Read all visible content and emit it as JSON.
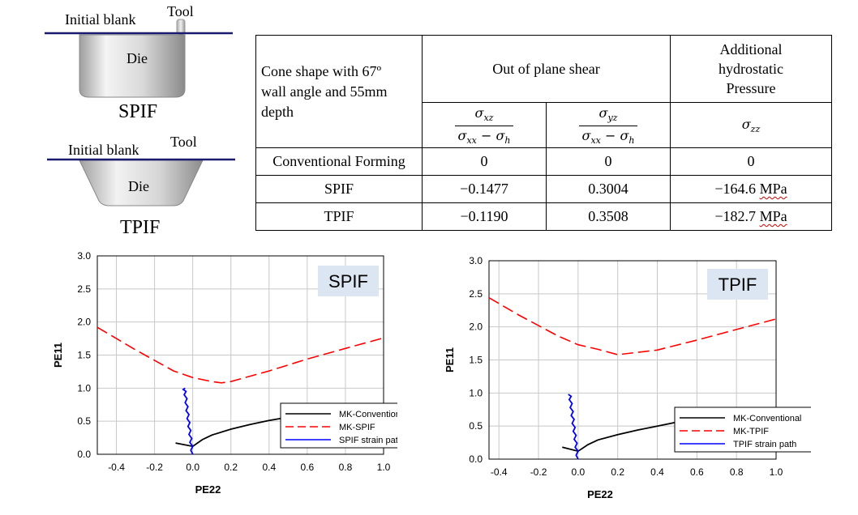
{
  "schematics": [
    {
      "blank_label": "Initial blank",
      "tool_label": "Tool",
      "die_label": "Die",
      "process": "SPIF"
    },
    {
      "blank_label": "Initial blank",
      "tool_label": "Tool",
      "die_label": "Die",
      "process": "TPIF"
    }
  ],
  "table": {
    "corner_text": [
      "Cone shape with 67º",
      "wall angle and 55mm",
      "depth"
    ],
    "group_header": "Out of plane shear",
    "pressure_header": [
      "Additional",
      "hydrostatic",
      "Pressure"
    ],
    "formula1": {
      "num_var": "σ",
      "num_sub": "xz",
      "den_a": "σ",
      "den_a_sub": "xx",
      "den_op": " − ",
      "den_b": "σ",
      "den_b_sub": "h"
    },
    "formula2": {
      "num_var": "σ",
      "num_sub": "yz",
      "den_a": "σ",
      "den_a_sub": "xx",
      "den_op": " − ",
      "den_b": "σ",
      "den_b_sub": "h"
    },
    "formula3": {
      "var": "σ",
      "sub": "zz"
    },
    "rows": [
      {
        "label": "Conventional Forming",
        "c1": "0",
        "c2": "0",
        "c3": "0",
        "c3_unit": ""
      },
      {
        "label": "SPIF",
        "c1": "−0.1477",
        "c2": "0.3004",
        "c3": "−164.6 ",
        "c3_unit": "MPa"
      },
      {
        "label": "TPIF",
        "c1": "−0.1190",
        "c2": "0.3508",
        "c3": "−182.7 ",
        "c3_unit": "MPa"
      }
    ]
  },
  "chart_data": [
    {
      "type": "line",
      "title": "SPIF",
      "xlabel": "PE22",
      "ylabel": "PE11",
      "xlim": [
        -0.5,
        1.0
      ],
      "ylim": [
        0.0,
        3.0
      ],
      "x_ticks": [
        "-0.4",
        "-0.2",
        "0.0",
        "0.2",
        "0.4",
        "0.6",
        "0.8",
        "1.0"
      ],
      "y_ticks": [
        "0.0",
        "0.5",
        "1.0",
        "1.5",
        "2.0",
        "2.5",
        "3.0"
      ],
      "grid": true,
      "legend_position": "bottom-right",
      "series": [
        {
          "name": "MK-Conventional",
          "color": "#000000",
          "style": "solid",
          "x": [
            -0.09,
            0.0,
            0.0,
            0.05,
            0.1,
            0.2,
            0.3,
            0.4,
            0.5
          ],
          "y": [
            0.17,
            0.12,
            0.12,
            0.22,
            0.29,
            0.38,
            0.45,
            0.51,
            0.56
          ]
        },
        {
          "name": "MK-SPIF",
          "color": "#ff0000",
          "style": "dashed",
          "x": [
            -0.5,
            -0.3,
            -0.1,
            0.0,
            0.1,
            0.15,
            0.2,
            0.4,
            0.6,
            0.8,
            1.0
          ],
          "y": [
            1.92,
            1.58,
            1.26,
            1.16,
            1.1,
            1.08,
            1.1,
            1.26,
            1.44,
            1.6,
            1.76
          ]
        },
        {
          "name": "SPIF strain path",
          "color": "#0000ff",
          "style": "solid",
          "x": [
            0.0,
            -0.01,
            0.0,
            -0.015,
            -0.005,
            -0.02,
            -0.01,
            -0.025,
            -0.015,
            -0.03,
            -0.02,
            -0.035,
            -0.025,
            -0.04,
            -0.03,
            -0.045,
            -0.035,
            -0.05,
            -0.04
          ],
          "y": [
            0.0,
            0.06,
            0.12,
            0.18,
            0.24,
            0.3,
            0.36,
            0.42,
            0.48,
            0.54,
            0.6,
            0.66,
            0.72,
            0.78,
            0.84,
            0.9,
            0.95,
            0.98,
            1.0
          ]
        }
      ]
    },
    {
      "type": "line",
      "title": "TPIF",
      "xlabel": "PE22",
      "ylabel": "PE11",
      "xlim": [
        -0.45,
        1.0
      ],
      "ylim": [
        0.0,
        3.0
      ],
      "x_ticks": [
        "-0.4",
        "-0.2",
        "0.0",
        "0.2",
        "0.4",
        "0.6",
        "0.8",
        "1.0"
      ],
      "y_ticks": [
        "0.0",
        "0.5",
        "1.0",
        "1.5",
        "2.0",
        "2.5",
        "3.0"
      ],
      "grid": true,
      "legend_position": "bottom-right",
      "series": [
        {
          "name": "MK-Conventional",
          "color": "#000000",
          "style": "solid",
          "x": [
            -0.08,
            0.0,
            0.0,
            0.05,
            0.1,
            0.2,
            0.3,
            0.4,
            0.5
          ],
          "y": [
            0.18,
            0.12,
            0.12,
            0.22,
            0.29,
            0.37,
            0.44,
            0.5,
            0.56
          ]
        },
        {
          "name": "MK-TPIF",
          "color": "#ff0000",
          "style": "dashed",
          "x": [
            -0.45,
            -0.3,
            -0.1,
            0.0,
            0.1,
            0.2,
            0.4,
            0.6,
            0.8,
            1.0
          ],
          "y": [
            2.44,
            2.18,
            1.86,
            1.73,
            1.66,
            1.58,
            1.65,
            1.8,
            1.96,
            2.12
          ]
        },
        {
          "name": "TPIF strain path",
          "color": "#0000ff",
          "style": "solid",
          "x": [
            0.0,
            -0.01,
            0.0,
            -0.015,
            -0.005,
            -0.02,
            -0.01,
            -0.025,
            -0.015,
            -0.03,
            -0.02,
            -0.035,
            -0.025,
            -0.04,
            -0.03,
            -0.045,
            -0.035,
            -0.05
          ],
          "y": [
            0.0,
            0.06,
            0.12,
            0.18,
            0.24,
            0.3,
            0.36,
            0.42,
            0.48,
            0.54,
            0.6,
            0.66,
            0.72,
            0.78,
            0.84,
            0.9,
            0.95,
            0.98
          ]
        }
      ]
    }
  ]
}
